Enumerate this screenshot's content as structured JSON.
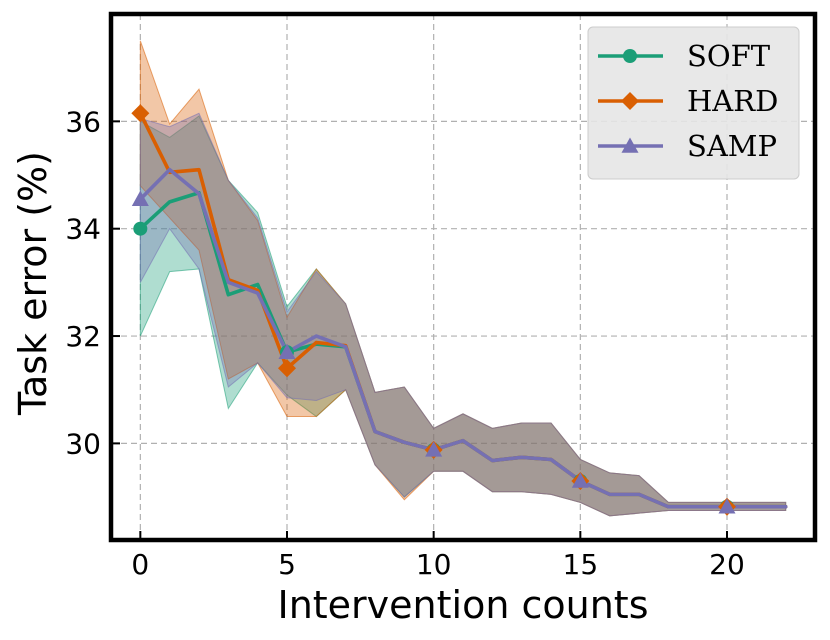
{
  "chart_data": {
    "type": "line",
    "xlabel": "Intervention counts",
    "ylabel": "Task error (%)",
    "xlim": [
      -1,
      23
    ],
    "ylim": [
      28.2,
      38.0
    ],
    "xticks": [
      0,
      5,
      10,
      15,
      20
    ],
    "yticks": [
      30,
      32,
      34,
      36
    ],
    "grid": true,
    "legend_position": "top-right",
    "series": [
      {
        "name": "SOFT",
        "color": "#1b9e77",
        "marker": "circle",
        "x": [
          0,
          1,
          2,
          3,
          4,
          5,
          6,
          7,
          8,
          9,
          10,
          11,
          12,
          13,
          14,
          15,
          16,
          17,
          18,
          19,
          20,
          21,
          22
        ],
        "y": [
          34.0,
          34.5,
          34.67,
          32.77,
          32.96,
          31.7,
          31.85,
          31.8,
          30.22,
          30.02,
          29.88,
          30.05,
          29.68,
          29.74,
          29.7,
          29.3,
          29.05,
          29.05,
          28.82,
          28.82,
          28.82,
          28.82,
          28.82
        ],
        "lower": [
          32.0,
          33.2,
          33.25,
          30.65,
          31.5,
          30.9,
          30.5,
          31.0,
          29.6,
          29.0,
          29.48,
          29.48,
          29.1,
          29.1,
          29.05,
          28.9,
          28.65,
          28.7,
          28.75,
          28.75,
          28.75,
          28.75,
          28.75
        ],
        "upper": [
          36.0,
          35.7,
          36.1,
          34.9,
          34.3,
          32.55,
          33.25,
          32.6,
          30.95,
          31.05,
          30.28,
          30.55,
          30.28,
          30.38,
          30.38,
          29.7,
          29.45,
          29.4,
          28.9,
          28.9,
          28.9,
          28.9,
          28.9
        ]
      },
      {
        "name": "HARD",
        "color": "#d95f02",
        "marker": "diamond",
        "x": [
          0,
          1,
          2,
          3,
          4,
          5,
          6,
          7,
          8,
          9,
          10,
          11,
          12,
          13,
          14,
          15,
          16,
          17,
          18,
          19,
          20,
          21,
          22
        ],
        "y": [
          36.15,
          35.05,
          35.1,
          33.05,
          32.85,
          31.4,
          31.88,
          31.82,
          30.22,
          30.02,
          29.88,
          30.05,
          29.68,
          29.74,
          29.7,
          29.3,
          29.05,
          29.05,
          28.82,
          28.82,
          28.82,
          28.82,
          28.82
        ],
        "lower": [
          34.8,
          34.2,
          33.6,
          31.2,
          31.5,
          30.5,
          30.5,
          31.0,
          29.6,
          28.95,
          29.48,
          29.48,
          29.1,
          29.1,
          29.05,
          28.9,
          28.65,
          28.7,
          28.75,
          28.75,
          28.75,
          28.75,
          28.75
        ],
        "upper": [
          37.5,
          35.95,
          36.6,
          34.9,
          34.15,
          32.35,
          33.25,
          32.6,
          30.95,
          31.05,
          30.28,
          30.55,
          30.28,
          30.38,
          30.38,
          29.7,
          29.45,
          29.4,
          28.9,
          28.9,
          28.9,
          28.9,
          28.9
        ]
      },
      {
        "name": "SAMP",
        "color": "#7570b3",
        "marker": "triangle",
        "x": [
          0,
          1,
          2,
          3,
          4,
          5,
          6,
          7,
          8,
          9,
          10,
          11,
          12,
          13,
          14,
          15,
          16,
          17,
          18,
          19,
          20,
          21,
          22
        ],
        "y": [
          34.55,
          35.1,
          34.65,
          33.0,
          32.8,
          31.7,
          32.0,
          31.8,
          30.22,
          30.02,
          29.88,
          30.05,
          29.68,
          29.74,
          29.7,
          29.3,
          29.05,
          29.05,
          28.82,
          28.82,
          28.82,
          28.82,
          28.82
        ],
        "lower": [
          33.0,
          34.0,
          33.25,
          31.05,
          31.5,
          30.85,
          30.8,
          31.0,
          29.6,
          29.0,
          29.48,
          29.48,
          29.1,
          29.1,
          29.05,
          28.9,
          28.65,
          28.7,
          28.75,
          28.75,
          28.75,
          28.75,
          28.75
        ],
        "upper": [
          36.05,
          35.9,
          36.15,
          34.9,
          34.2,
          32.45,
          33.2,
          32.6,
          30.95,
          31.05,
          30.28,
          30.55,
          30.28,
          30.38,
          30.38,
          29.7,
          29.45,
          29.4,
          28.9,
          28.9,
          28.9,
          28.9,
          28.9
        ]
      }
    ]
  }
}
